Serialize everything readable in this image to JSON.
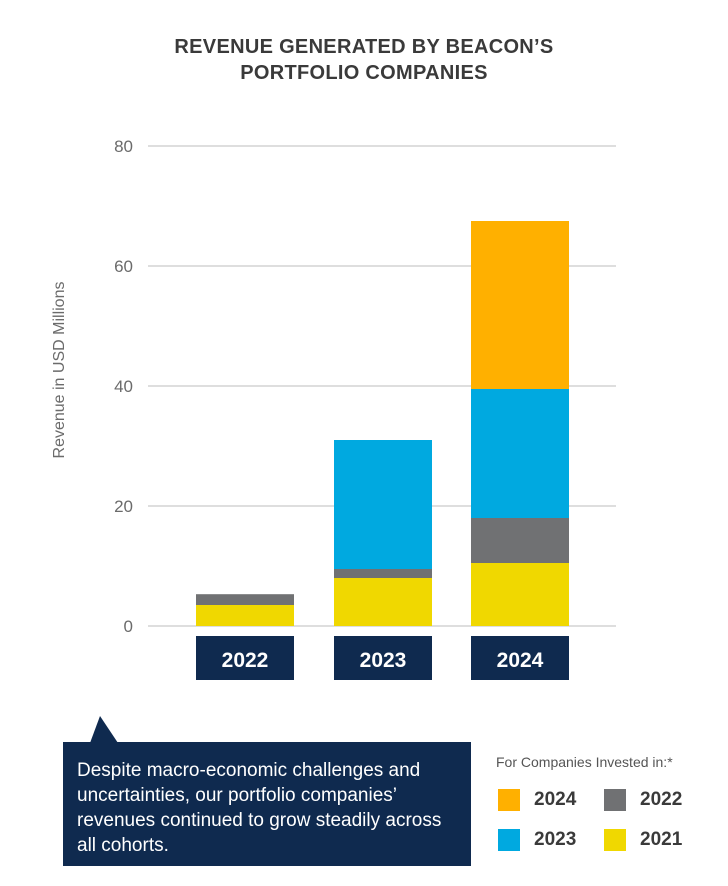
{
  "chart_data": {
    "type": "bar",
    "stacked": true,
    "title": "REVENUE GENERATED BY BEACON’S PORTFOLIO COMPANIES",
    "title_lines": [
      "REVENUE GENERATED BY BEACON’S",
      "PORTFOLIO COMPANIES"
    ],
    "xlabel": "",
    "ylabel": "Revenue in USD Millions",
    "ylim": [
      0,
      80
    ],
    "yticks": [
      0,
      20,
      40,
      60,
      80
    ],
    "grid": true,
    "categories": [
      "2022",
      "2023",
      "2024"
    ],
    "series": [
      {
        "name": "2021",
        "color": "#f0d800",
        "values": [
          3.5,
          8,
          10.5
        ]
      },
      {
        "name": "2022",
        "color": "#707173",
        "values": [
          1.8,
          1.5,
          7.5
        ]
      },
      {
        "name": "2023",
        "color": "#00a9e0",
        "values": [
          0,
          21.5,
          21.5
        ]
      },
      {
        "name": "2024",
        "color": "#ffb000",
        "values": [
          0,
          0,
          28
        ]
      }
    ],
    "legend_placement": "bottom-right"
  },
  "colors": {
    "navy": "#0f2a4f",
    "grid": "#bdbdbd",
    "axis_text": "#6b6b6b"
  },
  "callout": {
    "text": "Despite macro-economic challenges and uncertainties, our portfolio companies’ revenues continued to grow steadily across all cohorts."
  },
  "legend": {
    "title": "For Companies Invested in:*",
    "items": [
      {
        "label": "2024",
        "color": "#ffb000"
      },
      {
        "label": "2022",
        "color": "#707173"
      },
      {
        "label": "2023",
        "color": "#00a9e0"
      },
      {
        "label": "2021",
        "color": "#f0d800"
      }
    ]
  }
}
